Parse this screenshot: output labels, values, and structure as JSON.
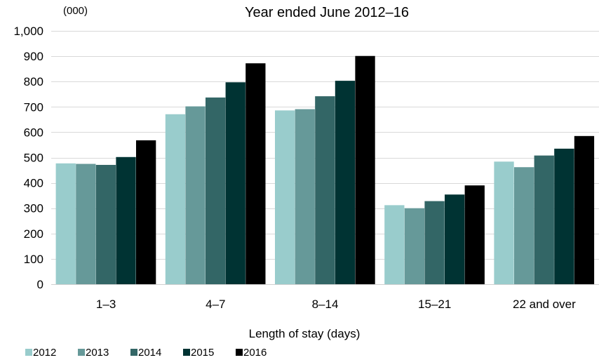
{
  "chart_data": {
    "type": "bar",
    "title": "Year ended June 2012–16",
    "unit_label": "(000)",
    "xlabel": "Length of  stay (days)",
    "ylabel": "",
    "ylim": [
      0,
      1000
    ],
    "yticks": [
      0,
      100,
      200,
      300,
      400,
      500,
      600,
      700,
      800,
      900,
      1000
    ],
    "ytick_labels": [
      "0",
      "100",
      "200",
      "300",
      "400",
      "500",
      "600",
      "700",
      "800",
      "900",
      "1,000"
    ],
    "categories": [
      "1–3",
      "4–7",
      "8–14",
      "15–21",
      "22 and over"
    ],
    "grid": true,
    "legend_position": "bottom-left",
    "series": [
      {
        "name": "2012",
        "color": "#99cccc",
        "values": [
          477,
          671,
          686,
          312,
          484
        ]
      },
      {
        "name": "2013",
        "color": "#669999",
        "values": [
          475,
          702,
          691,
          300,
          462
        ]
      },
      {
        "name": "2014",
        "color": "#336666",
        "values": [
          471,
          737,
          742,
          328,
          508
        ]
      },
      {
        "name": "2015",
        "color": "#003333",
        "values": [
          502,
          797,
          803,
          354,
          535
        ]
      },
      {
        "name": "2016",
        "color": "#000000",
        "values": [
          568,
          872,
          901,
          390,
          585
        ]
      }
    ]
  }
}
